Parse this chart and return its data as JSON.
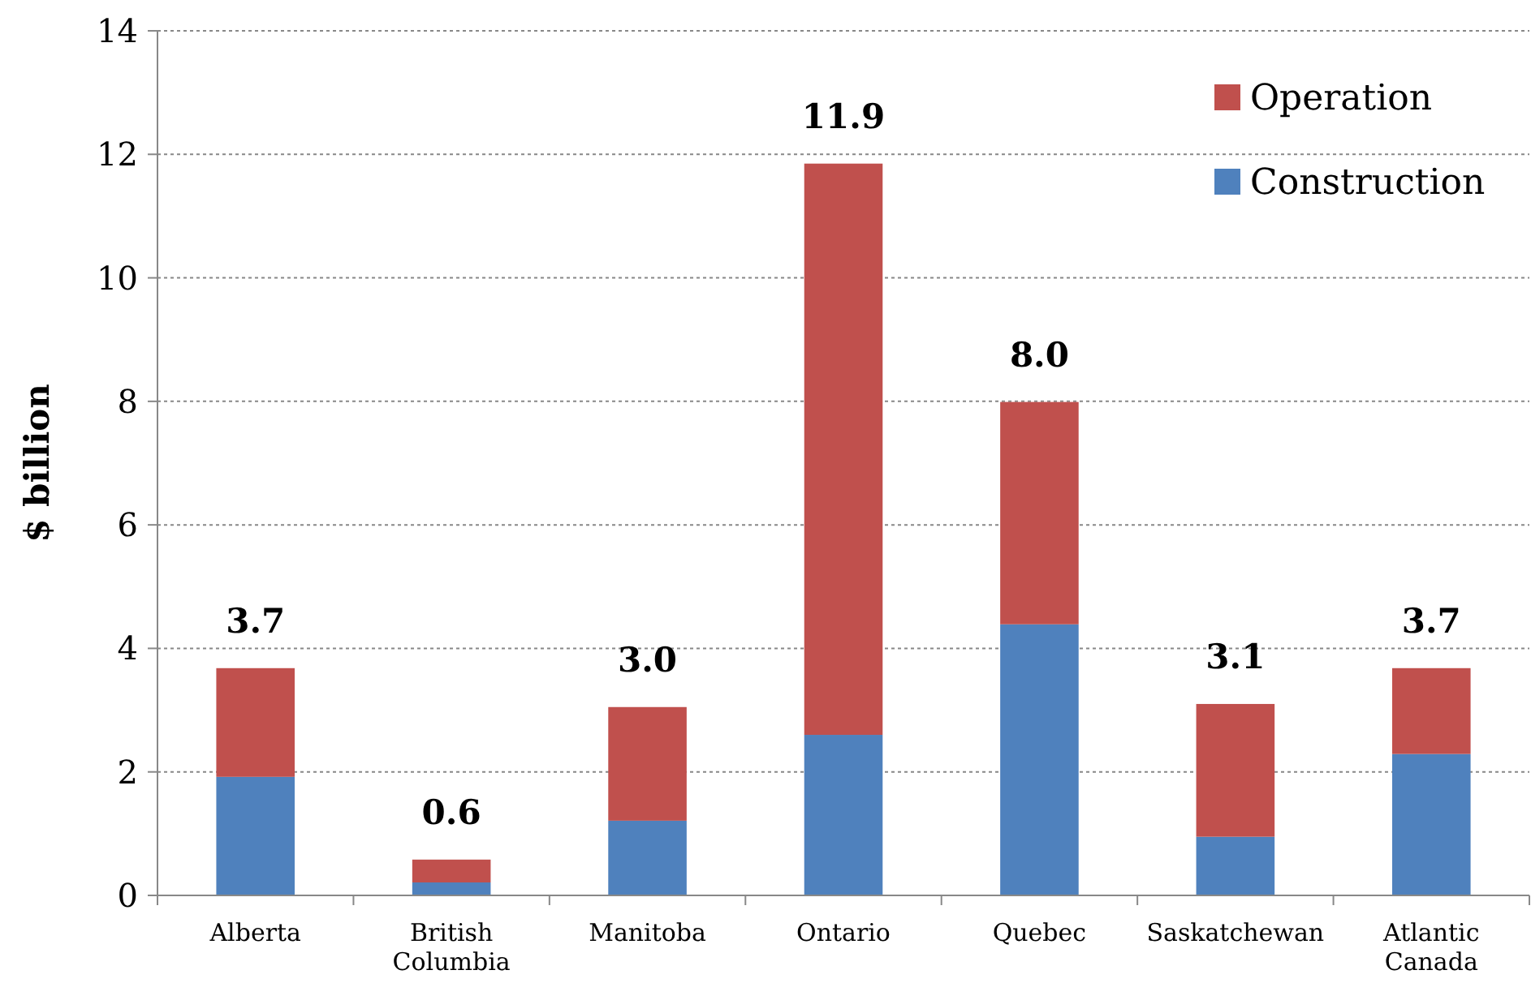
{
  "chart_data": {
    "type": "bar",
    "ylabel": "$ billion",
    "categories": [
      "Alberta",
      "British\nColumbia",
      "Manitoba",
      "Ontario",
      "Quebec",
      "Saskatchewan",
      "Atlantic\nCanada"
    ],
    "series": [
      {
        "name": "Construction",
        "color": "#4f81bd",
        "values": [
          1.92,
          0.21,
          1.21,
          2.6,
          4.39,
          0.95,
          2.29
        ]
      },
      {
        "name": "Operation",
        "color": "#c0504d",
        "values": [
          1.76,
          0.37,
          1.84,
          9.25,
          3.6,
          2.15,
          1.39
        ]
      }
    ],
    "stacked": true,
    "totals": [
      "3.7",
      "0.6",
      "3.0",
      "11.9",
      "8.0",
      "3.1",
      "3.7"
    ],
    "ylim": [
      0,
      14
    ],
    "yticks": [
      0,
      2,
      4,
      6,
      8,
      10,
      12,
      14
    ],
    "grid": "y",
    "legend": "top right"
  }
}
